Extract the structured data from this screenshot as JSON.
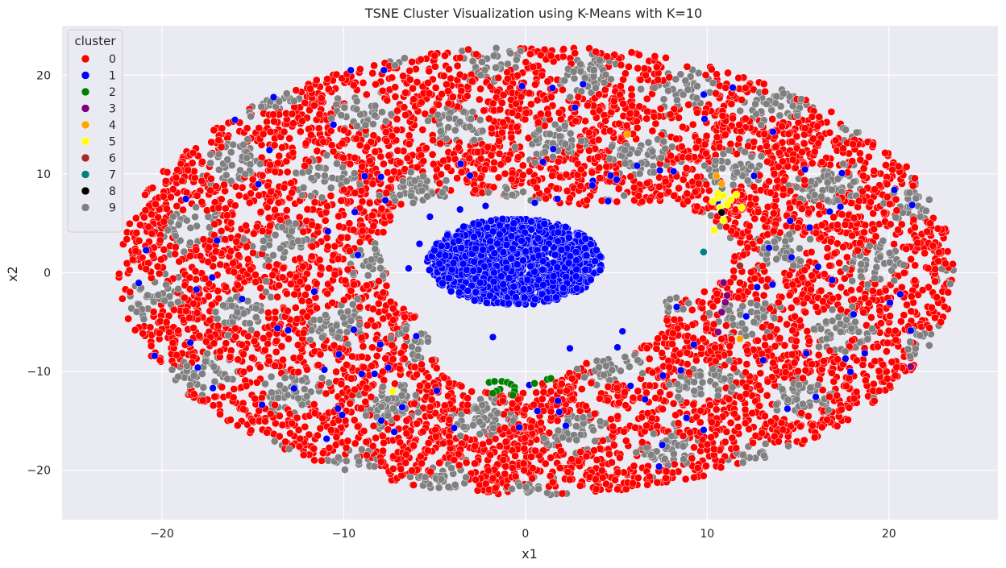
{
  "chart_data": {
    "type": "scatter",
    "title": "TSNE Cluster Visualization using K-Means with K=10",
    "xlabel": "x1",
    "ylabel": "x2",
    "xlim": [
      -25.5,
      26
    ],
    "ylim": [
      -25,
      25
    ],
    "xticks": [
      -20,
      -10,
      0,
      10,
      20
    ],
    "yticks": [
      -20,
      -10,
      0,
      10,
      20
    ],
    "xtick_labels": [
      "−20",
      "−10",
      "0",
      "10",
      "20"
    ],
    "ytick_labels": [
      "−20",
      "−10",
      "0",
      "10",
      "20"
    ],
    "grid": true,
    "background_color": "#eaeaf2",
    "legend": {
      "title": "cluster",
      "position": "top-left",
      "entries": [
        {
          "label": "0",
          "color": "#ff0000"
        },
        {
          "label": "1",
          "color": "#0000ff"
        },
        {
          "label": "2",
          "color": "#008000"
        },
        {
          "label": "3",
          "color": "#800080"
        },
        {
          "label": "4",
          "color": "#ffa500"
        },
        {
          "label": "5",
          "color": "#ffff00"
        },
        {
          "label": "6",
          "color": "#a52a2a"
        },
        {
          "label": "7",
          "color": "#008080"
        },
        {
          "label": "8",
          "color": "#000000"
        },
        {
          "label": "9",
          "color": "#808080"
        }
      ]
    },
    "series": [
      {
        "label": "2",
        "color": "#008000",
        "points": [
          [
            -2.0,
            -11.1
          ],
          [
            -1.7,
            -11.0
          ],
          [
            -1.3,
            -11.0
          ],
          [
            -1.0,
            -11.1
          ],
          [
            -0.8,
            -11.3
          ],
          [
            -0.6,
            -11.6
          ],
          [
            -0.6,
            -12.0
          ],
          [
            -0.7,
            -12.4
          ],
          [
            -1.4,
            -11.8
          ],
          [
            -1.6,
            -12.0
          ],
          [
            -1.8,
            -12.2
          ],
          [
            0.5,
            -11.2
          ],
          [
            1.2,
            -10.8
          ],
          [
            1.4,
            -10.7
          ]
        ]
      },
      {
        "label": "3",
        "color": "#800080",
        "points": [
          [
            10.8,
            -4.0
          ],
          [
            11.0,
            -3.0
          ],
          [
            11.1,
            -2.3
          ],
          [
            10.9,
            -1.0
          ],
          [
            10.6,
            -6.0
          ],
          [
            21.2,
            -9.5
          ]
        ]
      },
      {
        "label": "4",
        "color": "#ffa500",
        "points": [
          [
            10.5,
            9.8
          ],
          [
            10.8,
            9.0
          ],
          [
            11.8,
            -6.7
          ],
          [
            5.6,
            14.0
          ]
        ]
      },
      {
        "label": "5",
        "color": "#ffff00",
        "points": [
          [
            10.3,
            7.2
          ],
          [
            10.6,
            7.6
          ],
          [
            10.9,
            7.8
          ],
          [
            11.3,
            7.4
          ],
          [
            11.6,
            7.9
          ],
          [
            11.1,
            6.9
          ],
          [
            10.7,
            6.6
          ],
          [
            10.9,
            5.3
          ],
          [
            11.9,
            6.6
          ],
          [
            10.6,
            8.0
          ],
          [
            10.4,
            4.3
          ],
          [
            -7.3,
            -12.0
          ]
        ]
      },
      {
        "label": "6",
        "color": "#a52a2a",
        "points": [
          [
            11.8,
            0.7
          ]
        ]
      },
      {
        "label": "7",
        "color": "#008080",
        "points": [
          [
            9.8,
            2.1
          ]
        ]
      },
      {
        "label": "8",
        "color": "#000000",
        "points": [
          [
            10.8,
            6.1
          ]
        ]
      }
    ]
  }
}
